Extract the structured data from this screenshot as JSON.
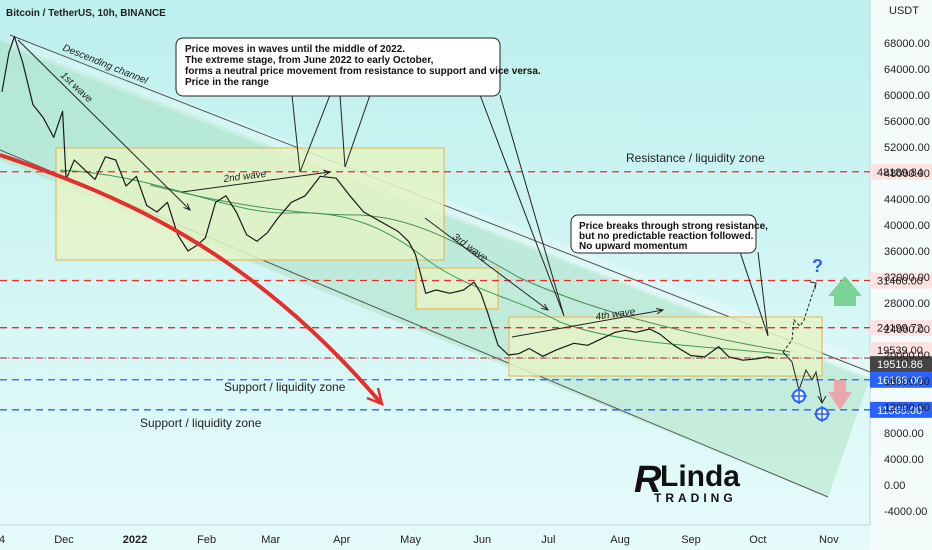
{
  "header": {
    "symbol": "Bitcoin / TetherUS, 10h, BINANCE",
    "currency": "USDT"
  },
  "chart_data": {
    "type": "line",
    "title": "Bitcoin / TetherUS, 10h, BINANCE",
    "ylabel": "USDT",
    "ylim": [
      -5000,
      72000
    ],
    "y_ticks": [
      68000,
      64000,
      60000,
      56000,
      52000,
      48000,
      44000,
      40000,
      36000,
      32000,
      28000,
      24000,
      20000,
      16000,
      12000,
      8000,
      4000,
      0,
      -4000
    ],
    "y_tick_labels": [
      "68000.00",
      "64000.00",
      "60000.00",
      "56000.00",
      "52000.00",
      "48000.00",
      "44000.00",
      "40000.00",
      "36000.00",
      "32000.00",
      "28000.00",
      "24000.00",
      "20000.00",
      "16000.00",
      "12000.00",
      "8000.00",
      "4000.00",
      "0.00",
      "-4000.00"
    ],
    "x_ticks": [
      {
        "label": "4",
        "month": 0.0
      },
      {
        "label": "Dec",
        "month": 0.9
      },
      {
        "label": "2022",
        "month": 1.93,
        "bold": true
      },
      {
        "label": "Feb",
        "month": 2.97
      },
      {
        "label": "Mar",
        "month": 3.9
      },
      {
        "label": "Apr",
        "month": 4.93
      },
      {
        "label": "May",
        "month": 5.93
      },
      {
        "label": "Jun",
        "month": 6.97
      },
      {
        "label": "Jul",
        "month": 7.93
      },
      {
        "label": "Aug",
        "month": 8.97
      },
      {
        "label": "Sep",
        "month": 10.0
      },
      {
        "label": "Oct",
        "month": 10.97
      },
      {
        "label": "Nov",
        "month": 12.0
      }
    ],
    "series": [
      {
        "values": [
          [
            0.0,
            60500
          ],
          [
            0.1,
            66500
          ],
          [
            0.18,
            69000
          ],
          [
            0.3,
            65000
          ],
          [
            0.45,
            58500
          ],
          [
            0.6,
            56500
          ],
          [
            0.75,
            53500
          ],
          [
            0.88,
            57500
          ],
          [
            0.93,
            47000
          ],
          [
            1.05,
            50000
          ],
          [
            1.2,
            48500
          ],
          [
            1.35,
            47000
          ],
          [
            1.5,
            50500
          ],
          [
            1.65,
            50000
          ],
          [
            1.8,
            46000
          ],
          [
            1.95,
            47500
          ],
          [
            2.1,
            43000
          ],
          [
            2.25,
            42000
          ],
          [
            2.4,
            43500
          ],
          [
            2.55,
            38500
          ],
          [
            2.7,
            36000
          ],
          [
            2.82,
            36800
          ],
          [
            2.95,
            38000
          ],
          [
            3.1,
            43500
          ],
          [
            3.25,
            44500
          ],
          [
            3.4,
            42000
          ],
          [
            3.55,
            38500
          ],
          [
            3.7,
            37500
          ],
          [
            3.85,
            38800
          ],
          [
            4.0,
            41000
          ],
          [
            4.2,
            43500
          ],
          [
            4.4,
            44500
          ],
          [
            4.62,
            47500
          ],
          [
            4.85,
            47200
          ],
          [
            5.05,
            44500
          ],
          [
            5.25,
            42000
          ],
          [
            5.5,
            40500
          ],
          [
            5.75,
            39000
          ],
          [
            5.9,
            37500
          ],
          [
            6.0,
            35500
          ],
          [
            6.15,
            29500
          ],
          [
            6.3,
            30000
          ],
          [
            6.5,
            29500
          ],
          [
            6.7,
            30000
          ],
          [
            6.85,
            31200
          ],
          [
            6.95,
            29500
          ],
          [
            7.05,
            26500
          ],
          [
            7.2,
            21500
          ],
          [
            7.35,
            20000
          ],
          [
            7.5,
            20200
          ],
          [
            7.65,
            21000
          ],
          [
            7.85,
            19800
          ],
          [
            8.05,
            20800
          ],
          [
            8.3,
            21800
          ],
          [
            8.5,
            21500
          ],
          [
            8.7,
            22500
          ],
          [
            8.9,
            23500
          ],
          [
            9.05,
            23800
          ],
          [
            9.2,
            23500
          ],
          [
            9.4,
            24000
          ],
          [
            9.55,
            23200
          ],
          [
            9.75,
            21500
          ],
          [
            10.0,
            19900
          ],
          [
            10.2,
            19700
          ],
          [
            10.4,
            21300
          ],
          [
            10.55,
            19700
          ],
          [
            10.75,
            19200
          ],
          [
            10.95,
            19400
          ],
          [
            11.1,
            19700
          ],
          [
            11.2,
            19540
          ]
        ]
      }
    ],
    "levels": [
      {
        "label": "48189.84",
        "value": 48189.84,
        "color": "#e3302f"
      },
      {
        "label": "31460.00",
        "value": 31460.0,
        "color": "#e3302f"
      },
      {
        "label": "24199.72",
        "value": 24199.72,
        "color": "#e3302f"
      },
      {
        "label": "19539.00",
        "value": 19539.0,
        "color": "#e3302f"
      },
      {
        "label": "19510.86",
        "value": 19510.86,
        "color": "#555555"
      },
      {
        "label": "16188.00",
        "value": 16188.0,
        "color": "#2962ff"
      },
      {
        "label": "11565.00",
        "value": 11565.0,
        "color": "#2962ff"
      }
    ]
  },
  "annotations": {
    "main_box": [
      "Price moves in waves until the middle of 2022.",
      "The extreme stage, from June 2022 to early October,",
      "forms a neutral price movement from resistance to support and vice versa.",
      "Price in the range"
    ],
    "break_box": [
      "Price breaks through strong resistance,",
      "but no predictable reaction followed.",
      "No upward momentum"
    ],
    "descending_channel": "Descending channel",
    "wave1": "1st wave",
    "wave2": "2nd wave",
    "wave3": "3rd wave",
    "wave4": "4th wave",
    "resistance_zone": "Resistance / liquidity zone",
    "support_zone_1": "Support / liquidity zone",
    "support_zone_2": "Support / liquidity zone",
    "question_mark": "?"
  },
  "brand": {
    "initial": "R",
    "name": "Linda",
    "sub": "TRADING"
  },
  "colors": {
    "background_top": "#bdf0ee",
    "price_line": "#1a1a1a",
    "resistance_red": "#e3302f",
    "support_blue": "#2962ff",
    "range_box_fill": "#e4f3c6",
    "range_box_border": "#e6b34a",
    "channel_fill": "#9bd6a8",
    "arrow_green": "#6fd08c",
    "arrow_pink": "#f0a0a5"
  }
}
